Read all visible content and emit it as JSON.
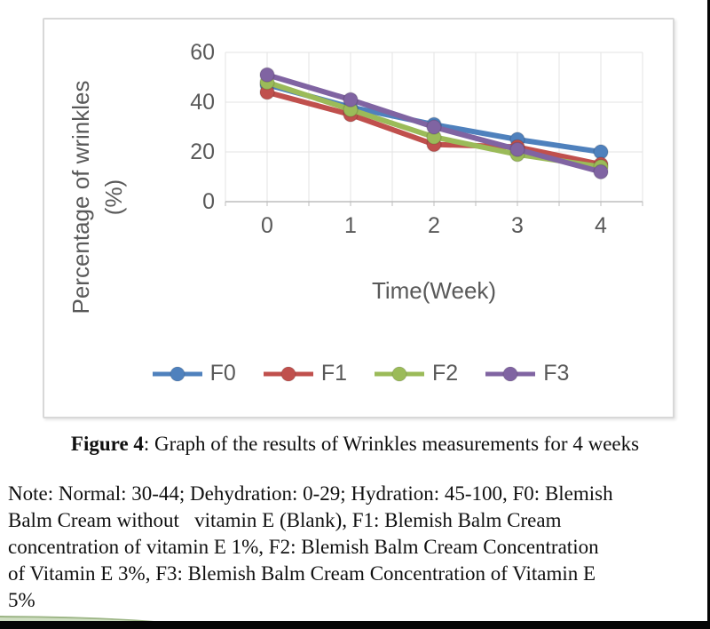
{
  "figure": {
    "caption_label": "Figure 4",
    "caption_text": ": Graph of the results of Wrinkles measurements for 4 weeks",
    "note_lines": [
      "Note: Normal: 30-44; Dehydration: 0-29; Hydration: 45-100, F0: Blemish",
      "Balm Cream without   vitamin E (Blank), F1: Blemish Balm Cream",
      "concentration of vitamin E 1%, F2: Blemish Balm Cream Concentration",
      "of Vitamin E 3%, F3: Blemish Balm Cream Concentration of Vitamin E",
      "5%"
    ]
  },
  "chart_data": {
    "type": "line",
    "title": "",
    "xlabel": "Time(Week)",
    "ylabel": "Percentage of wrinkles (%)",
    "ylabel_lines": [
      "Percentage of wrinkles",
      "(%)"
    ],
    "categories": [
      "0",
      "1",
      "2",
      "3",
      "4"
    ],
    "series": [
      {
        "name": "F0",
        "color": "#4F81BD",
        "values": [
          47,
          38,
          31,
          25,
          20
        ]
      },
      {
        "name": "F1",
        "color": "#C0504D",
        "values": [
          44,
          35,
          23,
          22,
          15
        ]
      },
      {
        "name": "F2",
        "color": "#9BBB59",
        "values": [
          48,
          37,
          26,
          19,
          14
        ]
      },
      {
        "name": "F3",
        "color": "#8064A2",
        "values": [
          51,
          41,
          30,
          21,
          12
        ]
      }
    ],
    "ylim": [
      0,
      60
    ],
    "y_ticks": [
      0,
      20,
      40,
      60
    ],
    "grid": true,
    "legend_position": "bottom"
  },
  "colors": {
    "grid": "#e3e3e3",
    "axis": "#bdbdbd",
    "tick_text": "#595959",
    "chart_border": "#d8d8d8",
    "frame_black": "#060606",
    "leaf_fill": "#cfdec2",
    "leaf_edge": "#9cb585"
  }
}
